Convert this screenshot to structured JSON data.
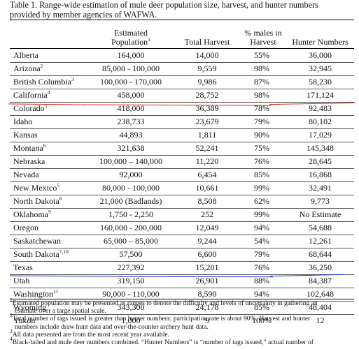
{
  "caption": {
    "line1": "Table 1. Range-wide estimation of mule deer population size, harvest, and hunter numbers",
    "line2": "provided by member agencies of WAFWA."
  },
  "headers": {
    "population_line1": "Estimated",
    "population_line2": "Population",
    "population_sup": "1",
    "harvest": "Total Harvest",
    "males_line1": "% males in",
    "males_line2": "Harvest",
    "hunters": "Hunter Numbers"
  },
  "rows": [
    {
      "name": "Alberta",
      "sup": "",
      "pop": "164,000",
      "harvest": "14,000",
      "pct": "55%",
      "hunters": "36,000"
    },
    {
      "name": "Arizona",
      "sup": "2",
      "pop": "85,000 - 100,000",
      "harvest": "9,559",
      "pct": "98%",
      "hunters": "32,945"
    },
    {
      "name": "British Columbia",
      "sup": "3",
      "pop": "100,000 - 170,000",
      "harvest": "9,986",
      "pct": "87%",
      "hunters": "58,230"
    },
    {
      "name": "California",
      "sup": "4",
      "pop": "458,000",
      "harvest": "28,752",
      "pct": "98%",
      "hunters": "171,124"
    },
    {
      "name": "Colorado",
      "sup": "5",
      "pop": "418,000",
      "harvest": "36,389",
      "pct": "78%",
      "hunters": "92,483"
    },
    {
      "name": "Idaho",
      "sup": "",
      "pop": "238,733",
      "harvest": "23,679",
      "pct": "79%",
      "hunters": "80,102"
    },
    {
      "name": "Kansas",
      "sup": "",
      "pop": "44,893",
      "harvest": "1,811",
      "pct": "90%",
      "hunters": "17,029"
    },
    {
      "name": "Montana",
      "sup": "6",
      "pop": "321,638",
      "harvest": "52,241",
      "pct": "75%",
      "hunters": "145,348"
    },
    {
      "name": "Nebraska",
      "sup": "",
      "pop": "100,000 – 140,000",
      "harvest": "11,220",
      "pct": "76%",
      "hunters": "28,645"
    },
    {
      "name": "Nevada",
      "sup": "",
      "pop": "92,000",
      "harvest": "6,454",
      "pct": "85%",
      "hunters": "16,868"
    },
    {
      "name": "New Mexico",
      "sup": "5",
      "pop": "80,000 - 100,000",
      "harvest": "10,661",
      "pct": "99%",
      "hunters": "32,491"
    },
    {
      "name": "North Dakota",
      "sup": "8",
      "pop": "21,000 (Badlands)",
      "harvest": "8,508",
      "pct": "62%",
      "hunters": "9,773"
    },
    {
      "name": "Oklahoma",
      "sup": "9",
      "pop": "1,750 - 2,250",
      "harvest": "252",
      "pct": "99%",
      "hunters": "No Estimate"
    },
    {
      "name": "Oregon",
      "sup": "",
      "pop": "160,000 - 200,000",
      "harvest": "12,049",
      "pct": "94%",
      "hunters": "54,688"
    },
    {
      "name": "Saskatchewan",
      "sup": "",
      "pop": "65,000 – 85,000",
      "harvest": "9,244",
      "pct": "54%",
      "hunters": "12,261"
    },
    {
      "name": "South Dakota",
      "sup": "7,10",
      "pop": "57,500",
      "harvest": "6,600",
      "pct": "79%",
      "hunters": "68,644"
    },
    {
      "name": "Texas",
      "sup": "",
      "pop": "227,392",
      "harvest": "15,201",
      "pct": "76%",
      "hunters": "36,250"
    },
    {
      "name": "Utah",
      "sup": "",
      "pop": "319,150",
      "harvest": "26,901",
      "pct": "88%",
      "hunters": "84,387"
    },
    {
      "name": "Washington",
      "sup": "11",
      "pop": "90,000 - 110,000",
      "harvest": "8,590",
      "pct": "94%",
      "hunters": "102,648"
    },
    {
      "name": "Wyoming",
      "sup": "",
      "pop": "343,300",
      "harvest": "24,178",
      "pct": "85%",
      "hunters": "48,404"
    },
    {
      "name": "Yukon",
      "sup": "",
      "pop": "1,000",
      "harvest": "9",
      "pct": "100%",
      "hunters": "12"
    }
  ],
  "footnotes": [
    {
      "sup": "1",
      "line1": "Estimated population may be presented as ranges to denote the difficulty and levels of uncertainty in gathering an",
      "line2": "estimate over a large spatial scale."
    },
    {
      "sup": "2",
      "line1": "Total number of tags issued is greater than hunter numbers; participation rate is about 90%. Harvest and hunter",
      "line2": "numbers include draw hunt data and over-the-counter archery hunt data."
    },
    {
      "sup": "3",
      "line1": "All data presented are from the most recent year available.",
      "line2": ""
    },
    {
      "sup": "4",
      "line1": "Black-tailed and mule deer numbers combined. “Hunter Numbers” is “number of tags issued,” actual number of",
      "line2": ""
    }
  ],
  "annotation_colors": {
    "red_marker": "#e0281c",
    "blue_marker": "#1f2fd6"
  }
}
